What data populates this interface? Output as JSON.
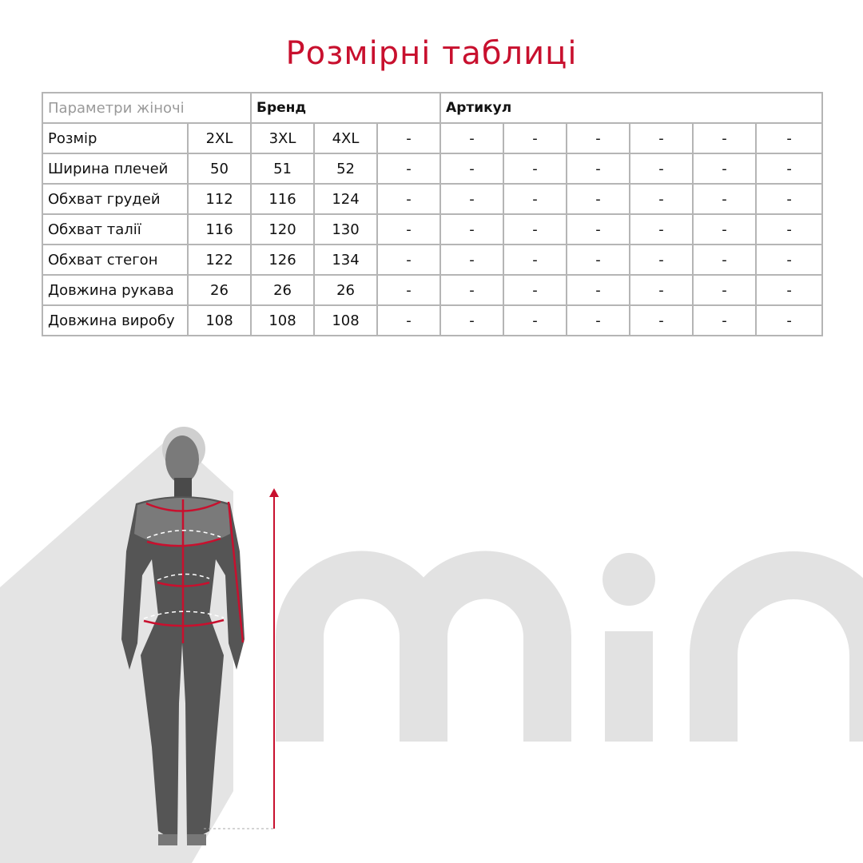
{
  "title": "Розмірні таблиці",
  "colors": {
    "accent": "#c8102e",
    "logo_gray": "#e2e2e2",
    "figure": "#555555"
  },
  "header": {
    "params": "Параметри жіночі",
    "brand": "Бренд",
    "article": "Артикул"
  },
  "rows": [
    {
      "label": "Розмір",
      "values": [
        "2XL",
        "3XL",
        "4XL",
        "-",
        "-",
        "-",
        "-",
        "-",
        "-",
        "-"
      ]
    },
    {
      "label": "Ширина плечей",
      "values": [
        "50",
        "51",
        "52",
        "-",
        "-",
        "-",
        "-",
        "-",
        "-",
        "-"
      ]
    },
    {
      "label": "Обхват грудей",
      "values": [
        "112",
        "116",
        "124",
        "-",
        "-",
        "-",
        "-",
        "-",
        "-",
        "-"
      ]
    },
    {
      "label": "Обхват талії",
      "values": [
        "116",
        "120",
        "130",
        "-",
        "-",
        "-",
        "-",
        "-",
        "-",
        "-"
      ]
    },
    {
      "label": "Обхват стегон",
      "values": [
        "122",
        "126",
        "134",
        "-",
        "-",
        "-",
        "-",
        "-",
        "-",
        "-"
      ]
    },
    {
      "label": "Довжина рукава",
      "values": [
        "26",
        "26",
        "26",
        "-",
        "-",
        "-",
        "-",
        "-",
        "-",
        "-"
      ]
    },
    {
      "label": "Довжина виробу",
      "values": [
        "108",
        "108",
        "108",
        "-",
        "-",
        "-",
        "-",
        "-",
        "-",
        "-"
      ]
    }
  ],
  "logo": "min"
}
